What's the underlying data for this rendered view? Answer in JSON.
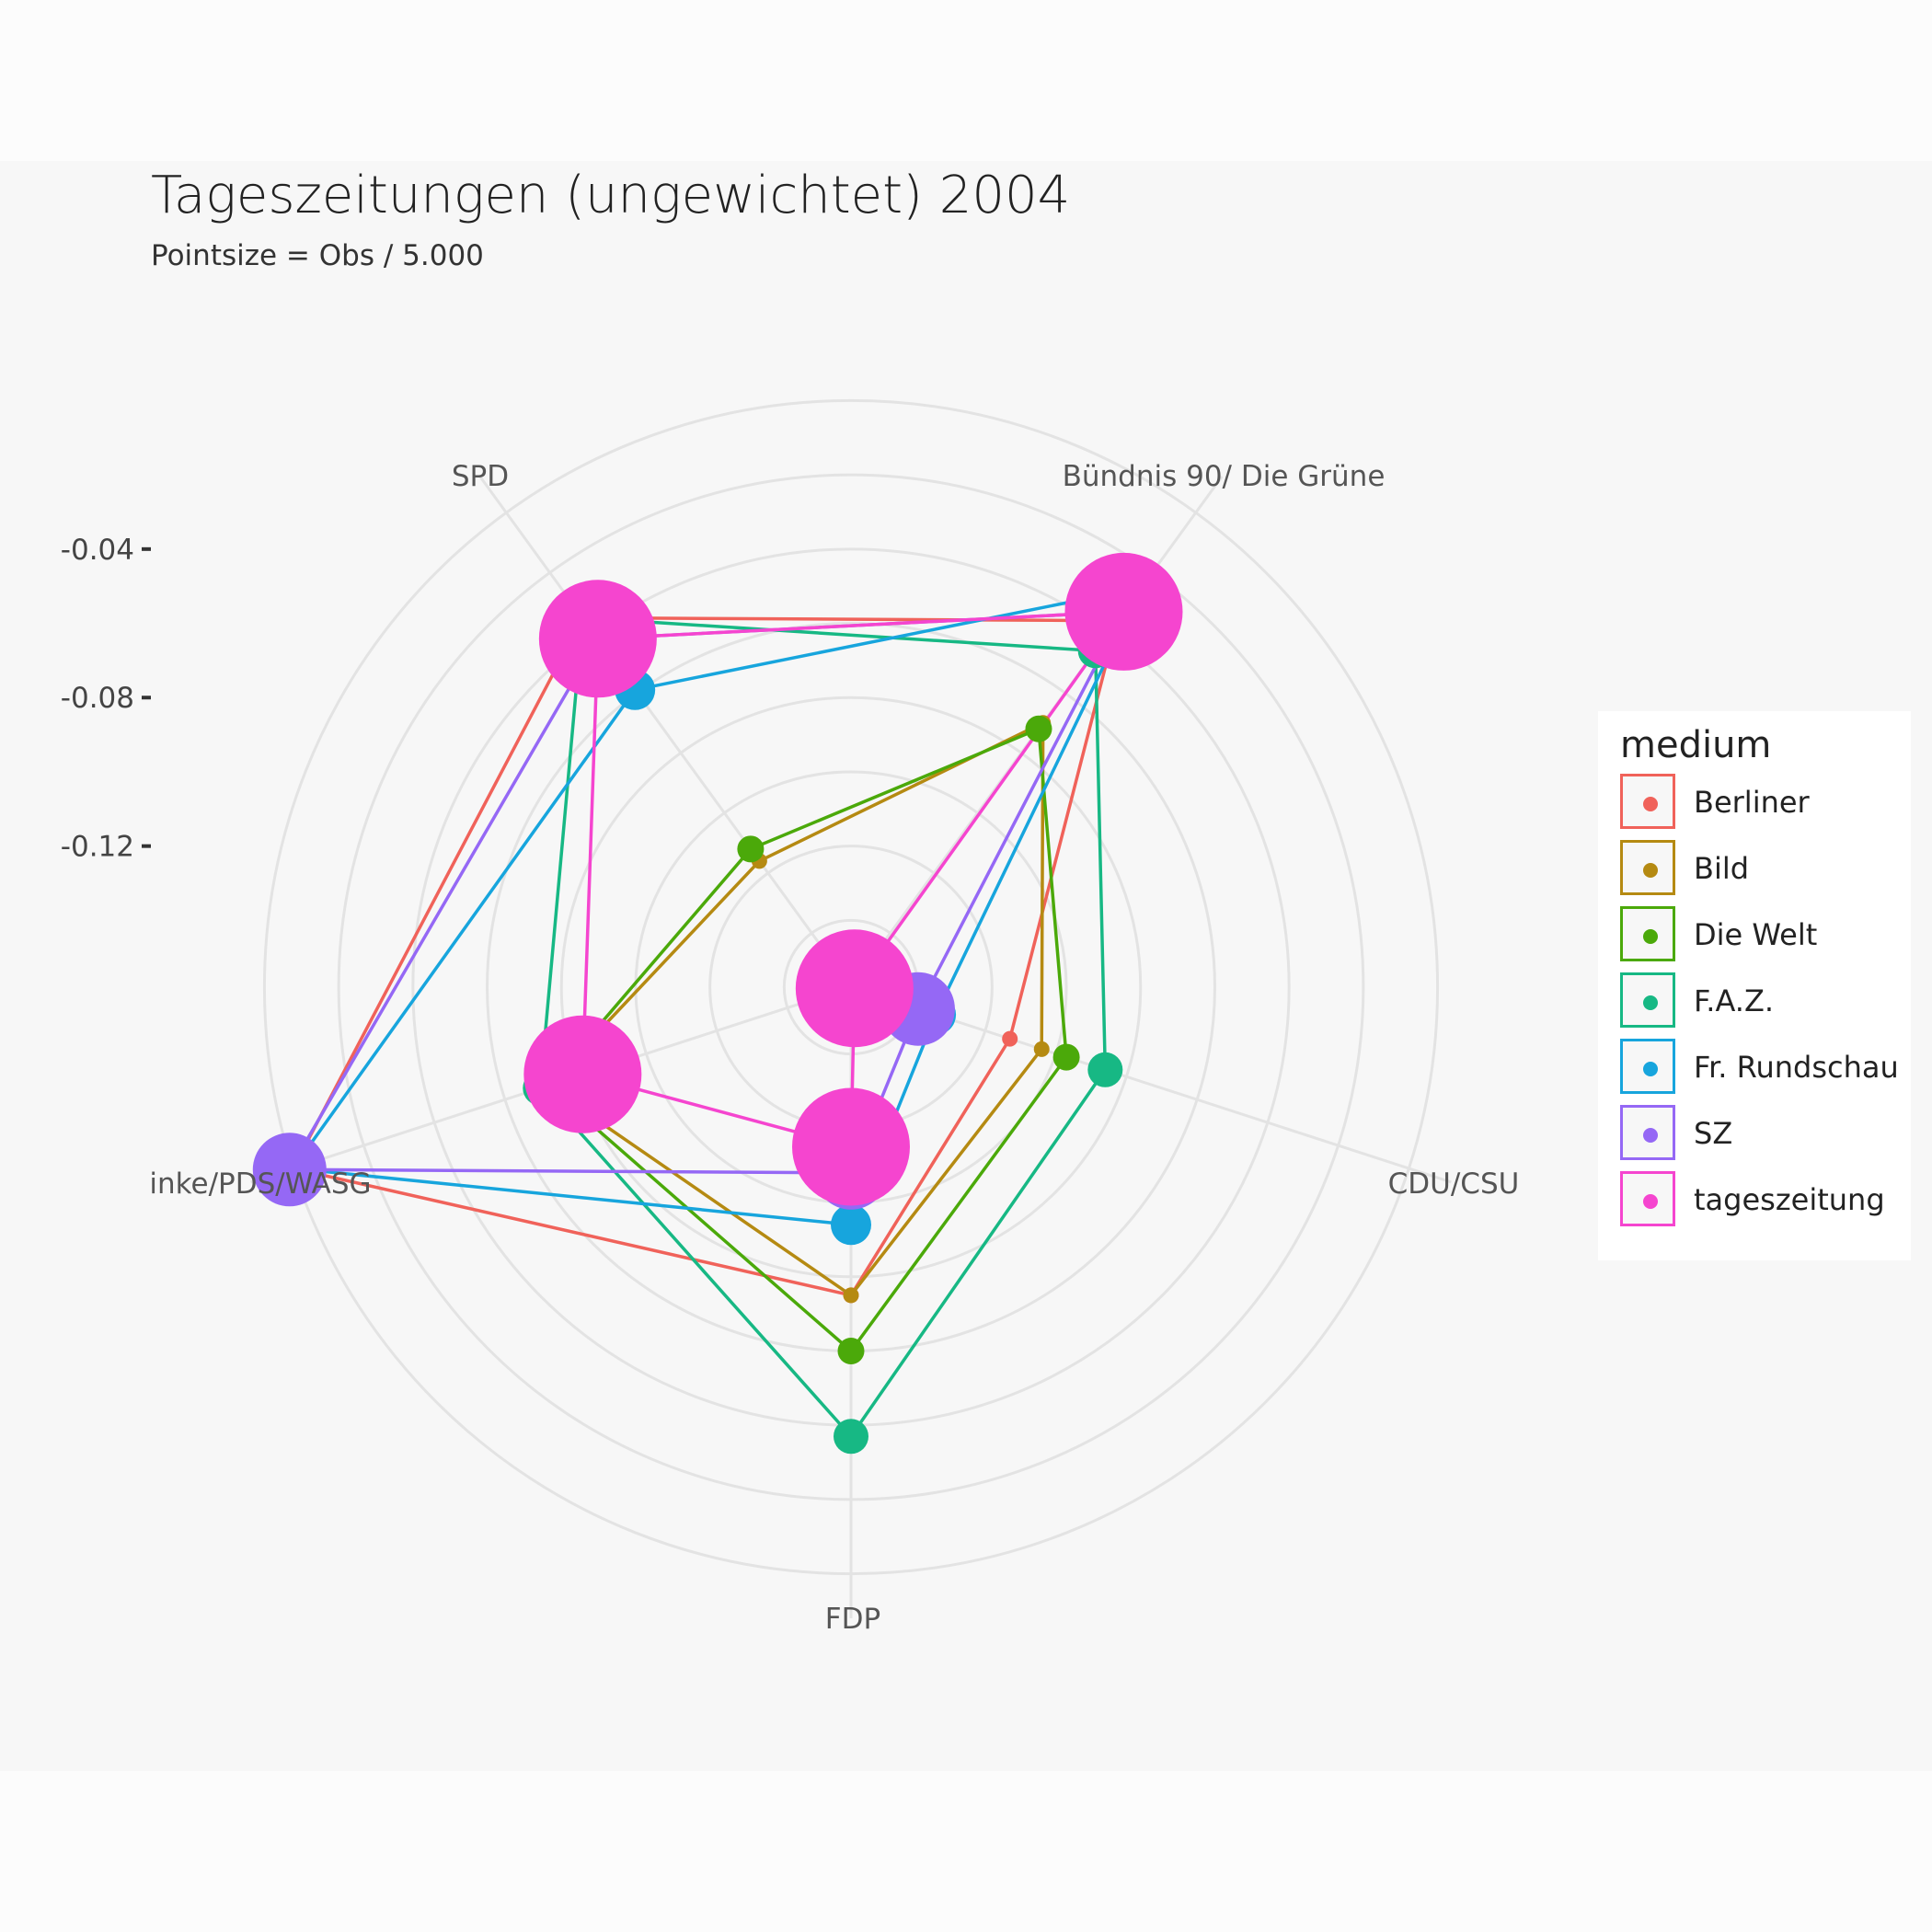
{
  "title": "Tageszeitungen (ungewichtet) 2004",
  "subtitle": "Pointsize = Obs / 5.000",
  "legend": {
    "title": "medium",
    "items": [
      {
        "label": "Berliner",
        "color": "#F0625A"
      },
      {
        "label": "Bild",
        "color": "#B58A12"
      },
      {
        "label": "Die Welt",
        "color": "#4BA90A"
      },
      {
        "label": "F.A.Z.",
        "color": "#17B884"
      },
      {
        "label": "Fr. Rundschau",
        "color": "#17A5DD"
      },
      {
        "label": "SZ",
        "color": "#9568F5"
      },
      {
        "label": "tageszeitung",
        "color": "#F545CF"
      }
    ]
  },
  "chart_data": {
    "type": "radar",
    "title": "Tageszeitungen (ungewichtet) 2004",
    "subtitle": "Pointsize = Obs / 5.000",
    "axes": [
      "Bündnis 90/ Die Grüne",
      "CDU/CSU",
      "FDP",
      "inke/PDS/WASG",
      "SPD"
    ],
    "radial_ticks": [
      "-0.04",
      "-0.08",
      "-0.12"
    ],
    "radial_tick_values": [
      -0.04,
      -0.08,
      -0.12
    ],
    "r_range": [
      -0.158,
      0.012
    ],
    "grid": true,
    "legend_position": "right",
    "series": [
      {
        "name": "Berliner",
        "color": "#F0625A",
        "values": [
          -0.036,
          -0.113,
          -0.075,
          0.0,
          -0.035
        ],
        "point_size": 1.5
      },
      {
        "name": "Bild",
        "color": "#B58A12",
        "values": [
          -0.07,
          -0.104,
          -0.075,
          -0.072,
          -0.116
        ],
        "point_size": 1.5
      },
      {
        "name": "Die Welt",
        "color": "#4BA90A",
        "values": [
          -0.072,
          -0.097,
          -0.06,
          -0.072,
          -0.112
        ],
        "point_size": 3.5
      },
      {
        "name": "F.A.Z.",
        "color": "#17B884",
        "values": [
          -0.046,
          -0.086,
          -0.037,
          -0.07,
          -0.035
        ],
        "point_size": 5
      },
      {
        "name": "Fr. Rundschau",
        "color": "#17A5DD",
        "values": [
          -0.025,
          -0.134,
          -0.094,
          0.0,
          -0.059
        ],
        "point_size": 6
      },
      {
        "name": "SZ",
        "color": "#9568F5",
        "values": [
          -0.033,
          -0.139,
          -0.108,
          0.001,
          -0.042
        ],
        "point_size": 12
      },
      {
        "name": "tageszeitung",
        "color": "#F545CF",
        "values": [
          -0.033,
          -0.157,
          -0.115,
          -0.082,
          -0.042
        ],
        "point_size": 20
      }
    ]
  }
}
